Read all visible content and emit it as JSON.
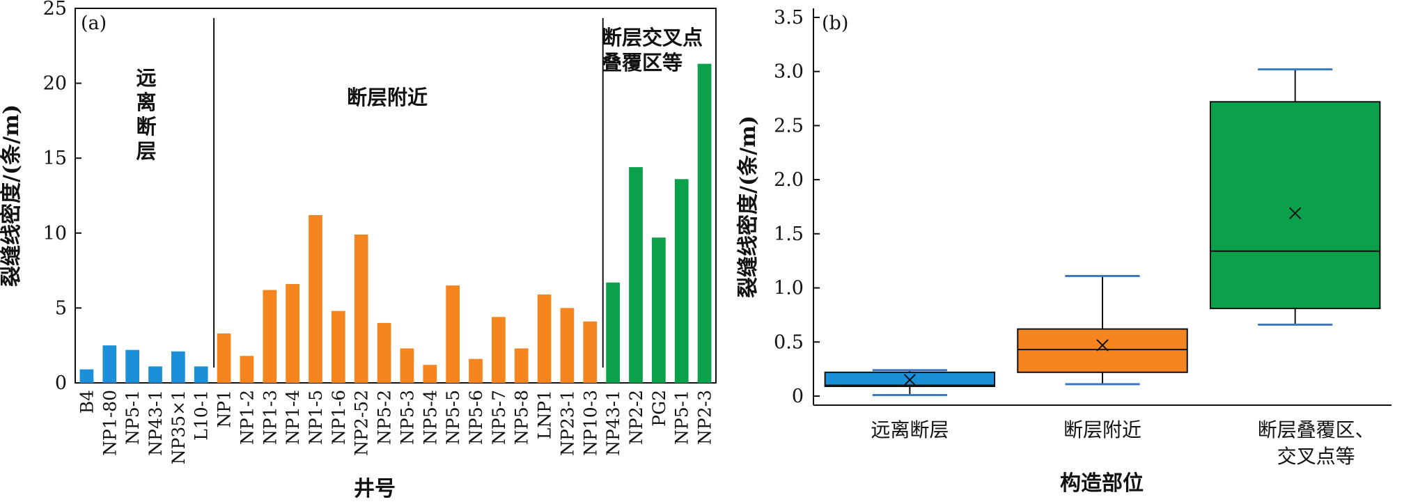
{
  "colors": {
    "blue": "#1b8fd8",
    "orange": "#f5851f",
    "green": "#0aa14a",
    "whisker": "#3b78c4",
    "axis": "#111111"
  },
  "chart_data": [
    {
      "type": "bar",
      "panel_label": "(a)",
      "xlabel": "井号",
      "ylabel": "裂缝线密度/(条/m)",
      "ylim": [
        0,
        25
      ],
      "yticks": [
        "0",
        "5",
        "10",
        "15",
        "20",
        "25"
      ],
      "groups": [
        {
          "label_lines": [
            "远",
            "离",
            "断",
            "层"
          ],
          "color": "blue",
          "categories": [
            "B4",
            "NP1-80",
            "NP5-1",
            "NP43-1",
            "NP35×1",
            "L10-1"
          ],
          "values": [
            0.9,
            2.5,
            2.2,
            1.1,
            2.1,
            1.1
          ]
        },
        {
          "label_lines": [
            "断层附近"
          ],
          "color": "orange",
          "categories": [
            "NP1",
            "NP1-2",
            "NP1-3",
            "NP1-4",
            "NP1-5",
            "NP1-6",
            "NP2-52",
            "NP5-2",
            "NP5-3",
            "NP5-4",
            "NP5-5",
            "NP5-6",
            "NP5-7",
            "NP5-8",
            "LNP1",
            "NP23-1",
            "NP10-3"
          ],
          "values": [
            3.3,
            1.8,
            6.2,
            6.6,
            11.2,
            4.8,
            9.9,
            4.0,
            2.3,
            1.2,
            6.5,
            1.6,
            4.4,
            2.3,
            5.9,
            5.0,
            4.1
          ]
        },
        {
          "label_lines": [
            "断层交叉点",
            "叠覆区等"
          ],
          "color": "green",
          "categories": [
            "NP43-1",
            "NP2-2",
            "PG2",
            "NP5-1",
            "NP2-3"
          ],
          "values": [
            6.7,
            14.4,
            9.7,
            13.6,
            21.3
          ]
        }
      ]
    },
    {
      "type": "box",
      "panel_label": "(b)",
      "xlabel": "构造部位",
      "ylabel": "裂缝线密度/(条/m)",
      "ylim": [
        0,
        3.5
      ],
      "yticks": [
        "0",
        "0.5",
        "1.0",
        "1.5",
        "2.0",
        "2.5",
        "3.0",
        "3.5"
      ],
      "boxes": [
        {
          "label_lines": [
            "远离断层"
          ],
          "color": "blue",
          "min": 0.01,
          "q1": 0.09,
          "median": 0.1,
          "q3": 0.22,
          "max": 0.24,
          "mean": 0.15
        },
        {
          "label_lines": [
            "断层附近"
          ],
          "color": "orange",
          "min": 0.11,
          "q1": 0.22,
          "median": 0.43,
          "q3": 0.62,
          "max": 1.11,
          "mean": 0.47
        },
        {
          "label_lines": [
            "断层叠覆区、",
            "交叉点等"
          ],
          "color": "green",
          "min": 0.66,
          "q1": 0.81,
          "median": 1.34,
          "q3": 2.72,
          "max": 3.02,
          "mean": 1.69
        }
      ]
    }
  ]
}
